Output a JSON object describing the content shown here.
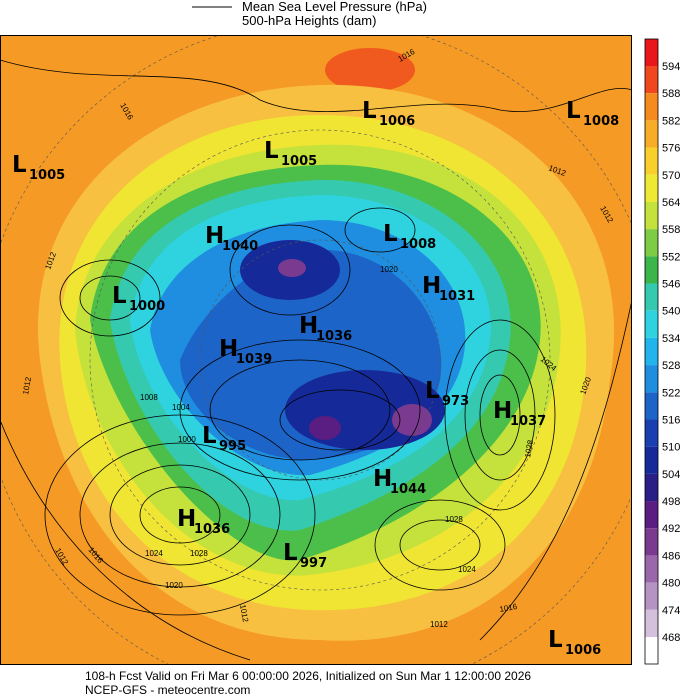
{
  "header": {
    "lines": [
      "Mean Sea Level Pressure (hPa)",
      "500-hPa Heights (dam)"
    ]
  },
  "colorbar": {
    "top_color": "#e8171b",
    "levels": [
      {
        "value": 594,
        "color": "#f0471e"
      },
      {
        "value": 588,
        "color": "#f58b1e"
      },
      {
        "value": 582,
        "color": "#f7ad27"
      },
      {
        "value": 576,
        "color": "#f9cf2c"
      },
      {
        "value": 570,
        "color": "#eeea33"
      },
      {
        "value": 564,
        "color": "#c5e23c"
      },
      {
        "value": 558,
        "color": "#7dcd44"
      },
      {
        "value": 552,
        "color": "#3cb54a"
      },
      {
        "value": 546,
        "color": "#35c9b0"
      },
      {
        "value": 540,
        "color": "#2fd3e0"
      },
      {
        "value": 534,
        "color": "#22b4ec"
      },
      {
        "value": 528,
        "color": "#1f8ee0"
      },
      {
        "value": 522,
        "color": "#1d64c8"
      },
      {
        "value": 516,
        "color": "#1a3fb0"
      },
      {
        "value": 510,
        "color": "#152a98"
      },
      {
        "value": 504,
        "color": "#2a1f86"
      },
      {
        "value": 498,
        "color": "#5a1d82"
      },
      {
        "value": 492,
        "color": "#7a3a90"
      },
      {
        "value": 486,
        "color": "#9a67aa"
      },
      {
        "value": 480,
        "color": "#b593c2"
      },
      {
        "value": 474,
        "color": "#d4c0dd"
      },
      {
        "value": 468,
        "color": "#ffffff"
      }
    ]
  },
  "centers": [
    {
      "kind": "L",
      "value": 1005
    },
    {
      "kind": "L",
      "value": 1006
    },
    {
      "kind": "L",
      "value": 1008
    },
    {
      "kind": "L",
      "value": 1005
    },
    {
      "kind": "H",
      "value": 1040
    },
    {
      "kind": "L",
      "value": 1008
    },
    {
      "kind": "H",
      "value": 1031
    },
    {
      "kind": "L",
      "value": 1000
    },
    {
      "kind": "H",
      "value": 1036
    },
    {
      "kind": "H",
      "value": 1039
    },
    {
      "kind": "L",
      "value": 973
    },
    {
      "kind": "H",
      "value": 1037
    },
    {
      "kind": "L",
      "value": 995
    },
    {
      "kind": "H",
      "value": 1044
    },
    {
      "kind": "H",
      "value": 1036
    },
    {
      "kind": "L",
      "value": 997
    },
    {
      "kind": "L",
      "value": 1006
    }
  ],
  "contour_labels": [
    1012,
    1012,
    1016,
    1016,
    1012,
    1020,
    1024,
    1028,
    1020,
    1028,
    1024,
    1016,
    1012,
    1024,
    1028,
    1020,
    1016,
    1012,
    1000,
    1004,
    1008,
    1012,
    1012
  ],
  "footer": {
    "lines": [
      "108-h Fcst Valid on Fri Mar  6 00:00:00 2026, Initialized on Sun Mar  1 12:00:00 2026",
      "NCEP-GFS - meteocentre.com"
    ]
  }
}
